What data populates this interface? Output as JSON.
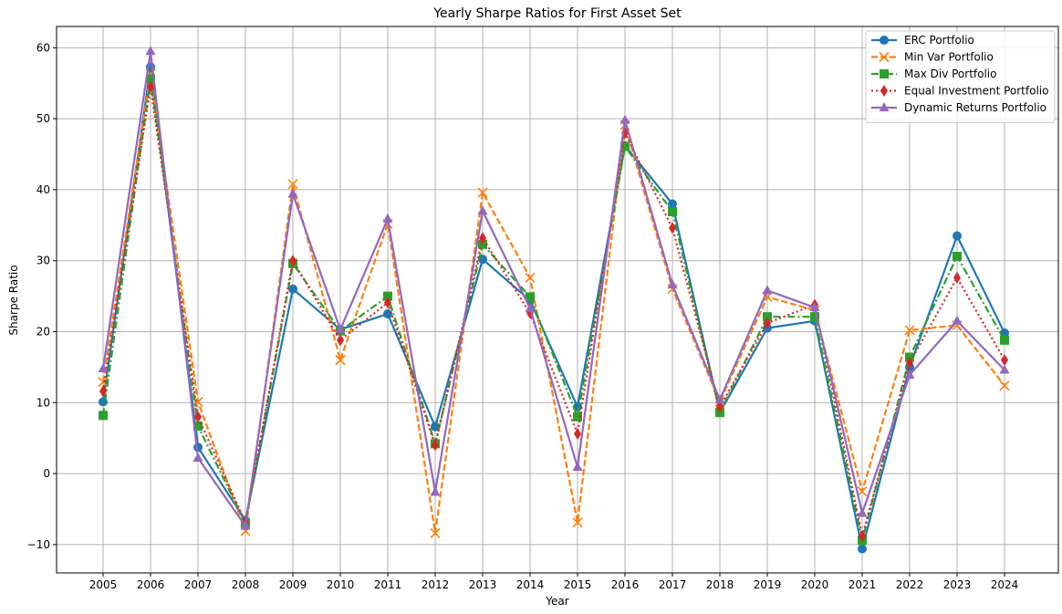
{
  "chart_data": {
    "type": "line",
    "title": "Yearly Sharpe Ratios for First Asset Set",
    "xlabel": "Year",
    "ylabel": "Sharpe Ratio",
    "categories": [
      "2005",
      "2006",
      "2007",
      "2008",
      "2009",
      "2010",
      "2011",
      "2012",
      "2013",
      "2014",
      "2015",
      "2016",
      "2017",
      "2018",
      "2019",
      "2020",
      "2021",
      "2022",
      "2023",
      "2024"
    ],
    "y_ticks": [
      -10,
      0,
      10,
      20,
      30,
      40,
      50,
      60
    ],
    "ylim": [
      -14,
      63
    ],
    "grid": true,
    "legend_position": "top-right",
    "series": [
      {
        "name": "ERC Portfolio",
        "color": "#1f77b4",
        "line_style": "solid",
        "marker": "circle",
        "values": [
          10.1,
          57.3,
          3.7,
          -6.6,
          26.0,
          20.3,
          22.5,
          6.6,
          30.2,
          24.4,
          9.4,
          46.2,
          38.0,
          8.6,
          20.5,
          21.5,
          -10.6,
          15.0,
          33.5,
          19.8
        ]
      },
      {
        "name": "Min Var Portfolio",
        "color": "#ff7f0e",
        "line_style": "dashed",
        "marker": "x",
        "values": [
          12.9,
          56.3,
          10.1,
          -8.1,
          40.8,
          16.0,
          35.2,
          -8.4,
          39.6,
          27.6,
          -6.9,
          49.1,
          26.0,
          10.1,
          24.9,
          23.0,
          -2.5,
          20.2,
          20.9,
          12.4
        ]
      },
      {
        "name": "Max Div Portfolio",
        "color": "#2ca02c",
        "line_style": "dashdot",
        "marker": "square",
        "values": [
          8.2,
          55.6,
          6.7,
          -7.0,
          29.6,
          20.1,
          25.0,
          4.2,
          32.3,
          24.9,
          8.0,
          46.1,
          36.9,
          8.6,
          22.1,
          22.1,
          -9.4,
          16.4,
          30.6,
          18.8
        ]
      },
      {
        "name": "Equal Investment Portfolio",
        "color": "#d62728",
        "line_style": "dotted",
        "marker": "diamond",
        "values": [
          11.6,
          54.5,
          8.0,
          -6.9,
          30.0,
          18.8,
          24.1,
          4.0,
          33.2,
          22.6,
          5.6,
          48.0,
          34.6,
          9.4,
          21.2,
          23.8,
          -8.8,
          15.6,
          27.6,
          16.0
        ]
      },
      {
        "name": "Dynamic Returns Portfolio",
        "color": "#9467bd",
        "line_style": "solid",
        "marker": "triangle",
        "values": [
          14.8,
          59.5,
          2.2,
          -7.4,
          39.4,
          20.3,
          35.9,
          -2.6,
          37.0,
          23.3,
          0.9,
          49.8,
          26.6,
          10.4,
          25.8,
          23.4,
          -5.6,
          13.9,
          21.5,
          14.6
        ]
      }
    ]
  }
}
